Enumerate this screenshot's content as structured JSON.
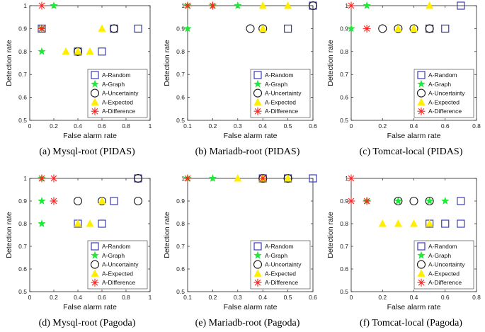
{
  "legend": {
    "entries": [
      "A-Random",
      "A-Graph",
      "A-Uncertainty",
      "A-Expected",
      "A-Difference"
    ],
    "placement": "bottom-right"
  },
  "style": {
    "random_color": "#3b3bb8",
    "graph_color": "#22e63a",
    "uncertainty_color": "#1a1a1a",
    "expected_color": "#ffee00",
    "difference_color": "#ff2020"
  },
  "chart_data": [
    {
      "type": "scatter",
      "caption": "(a) Mysql-root (PIDAS)",
      "xlabel": "False alarm rate",
      "ylabel": "Detection rate",
      "xlim": [
        0,
        1
      ],
      "ylim": [
        0.5,
        1
      ],
      "xticks": [
        "0",
        "0.2",
        "0.4",
        "0.6",
        "0.8",
        "1"
      ],
      "yticks": [
        "0.5",
        "0.6",
        "0.7",
        "0.8",
        "0.9",
        "1"
      ],
      "series": [
        {
          "name": "A-Random",
          "points": [
            [
              0.1,
              0.9
            ],
            [
              0.4,
              0.8
            ],
            [
              0.6,
              0.8
            ],
            [
              0.7,
              0.9
            ],
            [
              0.9,
              0.9
            ]
          ]
        },
        {
          "name": "A-Graph",
          "points": [
            [
              0.1,
              0.8
            ],
            [
              0.2,
              1.0
            ],
            [
              0.1,
              0.9
            ]
          ]
        },
        {
          "name": "A-Uncertainty",
          "points": [
            [
              0.4,
              0.8
            ],
            [
              0.7,
              0.9
            ]
          ]
        },
        {
          "name": "A-Expected",
          "points": [
            [
              0.3,
              0.8
            ],
            [
              0.4,
              0.8
            ],
            [
              0.5,
              0.8
            ],
            [
              0.6,
              0.9
            ]
          ]
        },
        {
          "name": "A-Difference",
          "points": [
            [
              0.1,
              1.0
            ],
            [
              0.1,
              0.9
            ]
          ]
        }
      ]
    },
    {
      "type": "scatter",
      "caption": "(b) Mariadb-root (PIDAS)",
      "xlabel": "False alarm rate",
      "ylabel": "Detection rate",
      "xlim": [
        0.1,
        0.6
      ],
      "ylim": [
        0.5,
        1
      ],
      "xticks": [
        "0.1",
        "0.2",
        "0.3",
        "0.4",
        "0.5",
        "0.6"
      ],
      "yticks": [
        "0.5",
        "0.6",
        "0.7",
        "0.8",
        "0.9",
        "1"
      ],
      "series": [
        {
          "name": "A-Random",
          "points": [
            [
              0.5,
              0.9
            ],
            [
              0.6,
              1.0
            ]
          ]
        },
        {
          "name": "A-Graph",
          "points": [
            [
              0.1,
              1.0
            ],
            [
              0.1,
              0.9
            ],
            [
              0.2,
              1.0
            ],
            [
              0.3,
              1.0
            ]
          ]
        },
        {
          "name": "A-Uncertainty",
          "points": [
            [
              0.35,
              0.9
            ],
            [
              0.4,
              0.9
            ],
            [
              0.6,
              1.0
            ]
          ]
        },
        {
          "name": "A-Expected",
          "points": [
            [
              0.4,
              0.9
            ],
            [
              0.4,
              1.0
            ],
            [
              0.5,
              1.0
            ]
          ]
        },
        {
          "name": "A-Difference",
          "points": [
            [
              0.1,
              1.0
            ],
            [
              0.2,
              1.0
            ]
          ]
        }
      ]
    },
    {
      "type": "scatter",
      "caption": "(c) Tomcat-local (PIDAS)",
      "xlabel": "False alarm rate",
      "ylabel": "Detection rate",
      "xlim": [
        0,
        0.8
      ],
      "ylim": [
        0.5,
        1
      ],
      "xticks": [
        "0",
        "0.2",
        "0.4",
        "0.6",
        "0.8"
      ],
      "yticks": [
        "0.5",
        "0.6",
        "0.7",
        "0.8",
        "0.9",
        "1"
      ],
      "series": [
        {
          "name": "A-Random",
          "points": [
            [
              0.5,
              0.9
            ],
            [
              0.6,
              0.9
            ],
            [
              0.7,
              1.0
            ]
          ]
        },
        {
          "name": "A-Graph",
          "points": [
            [
              0.0,
              0.9
            ],
            [
              0.1,
              1.0
            ]
          ]
        },
        {
          "name": "A-Uncertainty",
          "points": [
            [
              0.2,
              0.9
            ],
            [
              0.3,
              0.9
            ],
            [
              0.4,
              0.9
            ],
            [
              0.5,
              0.9
            ]
          ]
        },
        {
          "name": "A-Expected",
          "points": [
            [
              0.3,
              0.9
            ],
            [
              0.4,
              0.9
            ],
            [
              0.5,
              1.0
            ]
          ]
        },
        {
          "name": "A-Difference",
          "points": [
            [
              0.0,
              1.0
            ],
            [
              0.1,
              0.9
            ]
          ]
        }
      ]
    },
    {
      "type": "scatter",
      "caption": "(d) Mysql-root (Pagoda)",
      "xlabel": "False alarm rate",
      "ylabel": "Detection rate",
      "xlim": [
        0,
        1
      ],
      "ylim": [
        0.5,
        1
      ],
      "xticks": [
        "0",
        "0.2",
        "0.4",
        "0.6",
        "0.8",
        "1"
      ],
      "yticks": [
        "0.5",
        "0.6",
        "0.7",
        "0.8",
        "0.9",
        "1"
      ],
      "series": [
        {
          "name": "A-Random",
          "points": [
            [
              0.4,
              0.8
            ],
            [
              0.6,
              0.8
            ],
            [
              0.7,
              0.9
            ],
            [
              0.9,
              1.0
            ]
          ]
        },
        {
          "name": "A-Graph",
          "points": [
            [
              0.1,
              1.0
            ],
            [
              0.1,
              0.9
            ],
            [
              0.1,
              0.8
            ]
          ]
        },
        {
          "name": "A-Uncertainty",
          "points": [
            [
              0.4,
              0.9
            ],
            [
              0.6,
              0.9
            ],
            [
              0.9,
              0.9
            ],
            [
              0.9,
              1.0
            ]
          ]
        },
        {
          "name": "A-Expected",
          "points": [
            [
              0.4,
              0.8
            ],
            [
              0.5,
              0.8
            ],
            [
              0.6,
              0.9
            ]
          ]
        },
        {
          "name": "A-Difference",
          "points": [
            [
              0.1,
              1.0
            ],
            [
              0.2,
              1.0
            ],
            [
              0.2,
              0.9
            ]
          ]
        }
      ]
    },
    {
      "type": "scatter",
      "caption": "(e) Mariadb-root (Pagoda)",
      "xlabel": "False alarm rate",
      "ylabel": "Detection rate",
      "xlim": [
        0.1,
        0.6
      ],
      "ylim": [
        0.5,
        1
      ],
      "xticks": [
        "0.1",
        "0.2",
        "0.3",
        "0.4",
        "0.5",
        "0.6"
      ],
      "yticks": [
        "0.5",
        "0.6",
        "0.7",
        "0.8",
        "0.9",
        "1"
      ],
      "series": [
        {
          "name": "A-Random",
          "points": [
            [
              0.6,
              1.0
            ],
            [
              0.4,
              1.0
            ],
            [
              0.5,
              1.0
            ]
          ]
        },
        {
          "name": "A-Graph",
          "points": [
            [
              0.1,
              1.0
            ],
            [
              0.2,
              1.0
            ]
          ]
        },
        {
          "name": "A-Uncertainty",
          "points": [
            [
              0.4,
              1.0
            ],
            [
              0.5,
              1.0
            ]
          ]
        },
        {
          "name": "A-Expected",
          "points": [
            [
              0.3,
              1.0
            ],
            [
              0.4,
              1.0
            ],
            [
              0.5,
              1.0
            ]
          ]
        },
        {
          "name": "A-Difference",
          "points": [
            [
              0.1,
              1.0
            ],
            [
              0.4,
              1.0
            ]
          ]
        }
      ]
    },
    {
      "type": "scatter",
      "caption": "(f) Tomcat-local (Pagoda)",
      "xlabel": "False alarm rate",
      "ylabel": "Detection rate",
      "xlim": [
        0,
        0.8
      ],
      "ylim": [
        0.5,
        1
      ],
      "xticks": [
        "0",
        "0.2",
        "0.4",
        "0.6",
        "0.8"
      ],
      "yticks": [
        "0.5",
        "0.6",
        "0.7",
        "0.8",
        "0.9",
        "1"
      ],
      "series": [
        {
          "name": "A-Random",
          "points": [
            [
              0.5,
              0.8
            ],
            [
              0.6,
              0.8
            ],
            [
              0.7,
              0.8
            ],
            [
              0.7,
              0.9
            ]
          ]
        },
        {
          "name": "A-Graph",
          "points": [
            [
              0.1,
              0.9
            ],
            [
              0.3,
              0.9
            ],
            [
              0.5,
              0.9
            ],
            [
              0.6,
              0.9
            ]
          ]
        },
        {
          "name": "A-Uncertainty",
          "points": [
            [
              0.3,
              0.9
            ],
            [
              0.4,
              0.9
            ],
            [
              0.5,
              0.9
            ]
          ]
        },
        {
          "name": "A-Expected",
          "points": [
            [
              0.2,
              0.8
            ],
            [
              0.3,
              0.8
            ],
            [
              0.4,
              0.8
            ],
            [
              0.5,
              0.8
            ]
          ]
        },
        {
          "name": "A-Difference",
          "points": [
            [
              0.0,
              1.0
            ],
            [
              0.0,
              0.9
            ],
            [
              0.1,
              0.9
            ]
          ]
        }
      ]
    }
  ]
}
